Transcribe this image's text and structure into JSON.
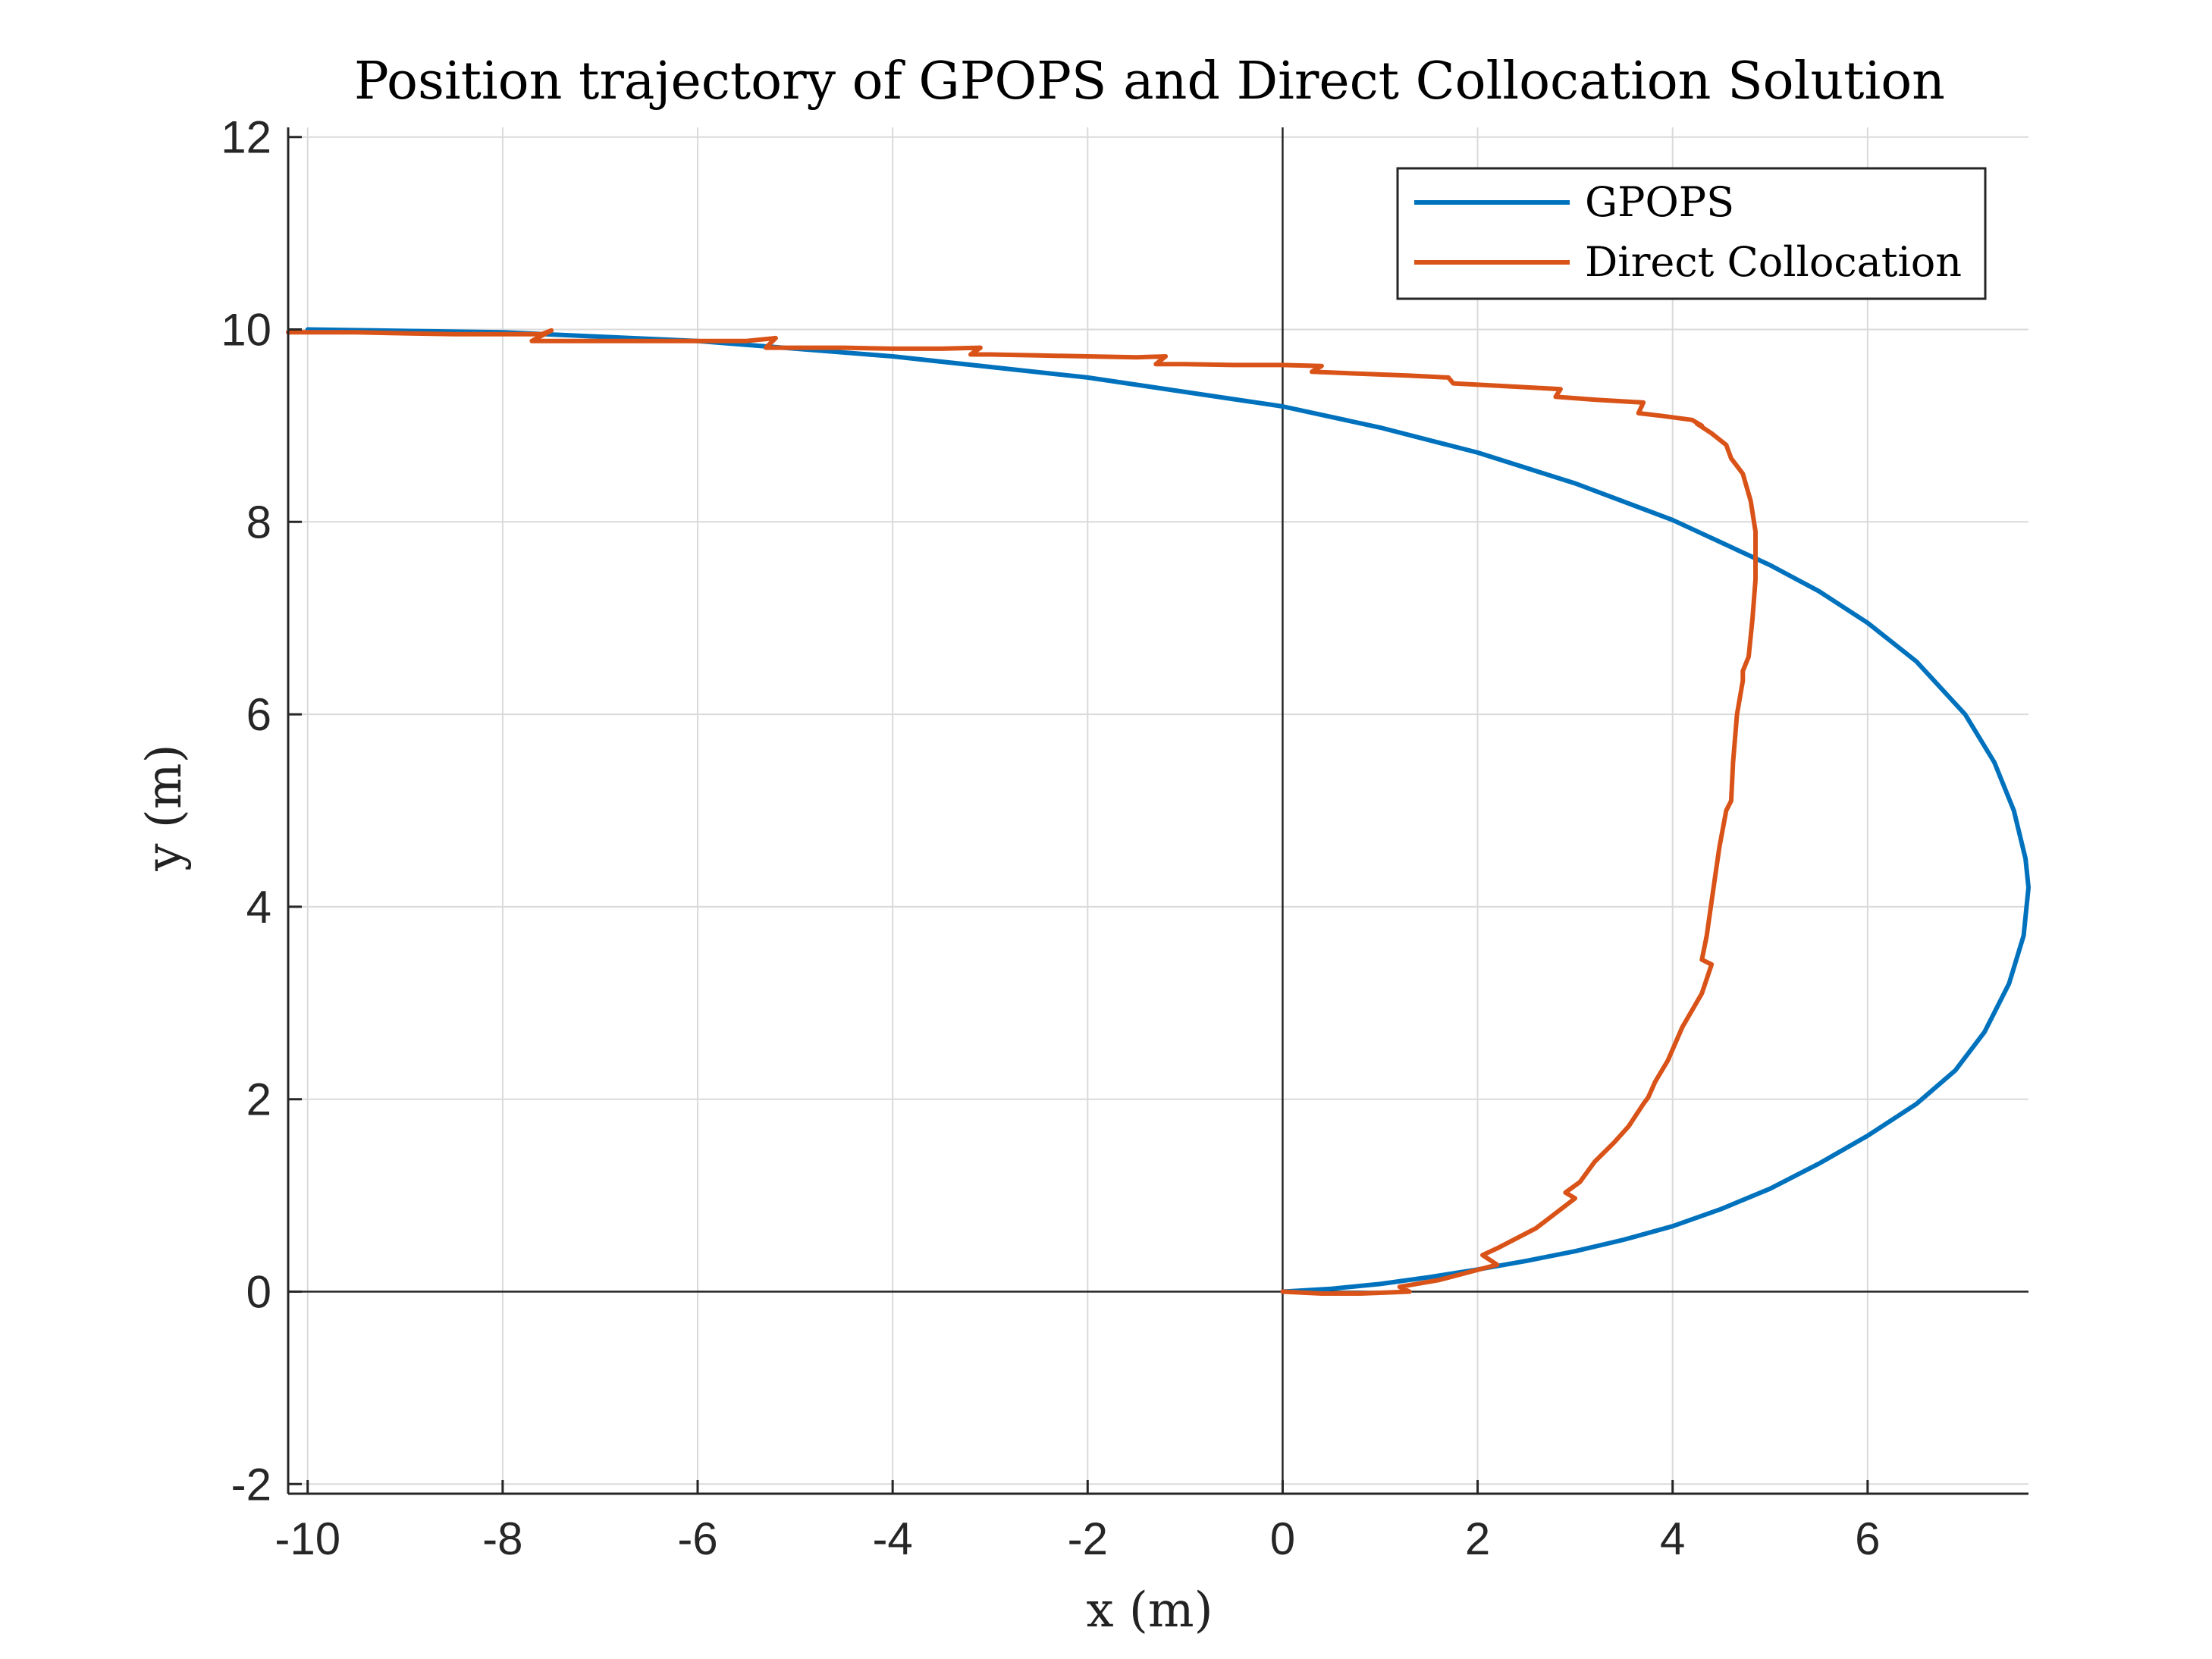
{
  "chart_data": {
    "type": "line",
    "title": "Position trajectory of GPOPS and Direct Collocation Solution",
    "xlabel": "x (m)",
    "ylabel": "y (m)",
    "xlim": [
      -10.2,
      7.65
    ],
    "ylim": [
      -2.1,
      12.1
    ],
    "xticks": [
      -10,
      -8,
      -6,
      -4,
      -2,
      0,
      2,
      4,
      6
    ],
    "yticks": [
      -2,
      0,
      2,
      4,
      6,
      8,
      10,
      12
    ],
    "grid": true,
    "zero_lines": true,
    "legend": {
      "position": "top-right"
    },
    "series": [
      {
        "name": "GPOPS",
        "color": "#0072BD",
        "x": [
          -10,
          -8,
          -6,
          -4,
          -2,
          0,
          1,
          2,
          3,
          4,
          5,
          5.5,
          6,
          6.5,
          7,
          7.3,
          7.5,
          7.62,
          7.65,
          7.6,
          7.45,
          7.2,
          6.9,
          6.5,
          6,
          5.5,
          5,
          4.5,
          4,
          3.5,
          3,
          2.5,
          2,
          1.5,
          1,
          0.5,
          0
        ],
        "y": [
          10,
          9.97,
          9.88,
          9.72,
          9.5,
          9.2,
          8.98,
          8.72,
          8.4,
          8.02,
          7.55,
          7.28,
          6.95,
          6.55,
          6.0,
          5.5,
          5.0,
          4.5,
          4.2,
          3.7,
          3.2,
          2.7,
          2.3,
          1.95,
          1.62,
          1.33,
          1.07,
          0.86,
          0.68,
          0.54,
          0.42,
          0.32,
          0.23,
          0.15,
          0.08,
          0.03,
          0
        ]
      },
      {
        "name": "Direct Collocation",
        "color": "#D95319",
        "x": [
          -10.2,
          -9.5,
          -9,
          -8.5,
          -8,
          -7.6,
          -7.5,
          -7.7,
          -7,
          -6.5,
          -6,
          -5.5,
          -5.2,
          -5.3,
          -5,
          -4.5,
          -4,
          -3.5,
          -3.1,
          -3.2,
          -3,
          -2.5,
          -2,
          -1.5,
          -1.2,
          -1.3,
          -1,
          -0.5,
          0,
          0.4,
          0.3,
          0.8,
          1.3,
          1.7,
          1.75,
          2.3,
          2.85,
          2.8,
          3.2,
          3.7,
          3.65,
          3.9,
          4.2,
          4.3,
          4.25,
          4.4,
          4.55,
          4.6,
          4.72,
          4.8,
          4.85,
          4.85,
          4.82,
          4.78,
          4.72,
          4.72,
          4.66,
          4.62,
          4.6,
          4.55,
          4.48,
          4.42,
          4.35,
          4.3,
          4.4,
          4.3,
          4.1,
          3.95,
          3.82,
          3.75,
          3.7,
          3.55,
          3.4,
          3.2,
          3.05,
          2.9,
          3.0,
          2.6,
          2.2,
          2.05,
          2.2,
          1.6,
          1.2,
          1.3,
          0.8,
          0.4,
          0
        ],
        "y": [
          9.97,
          9.97,
          9.96,
          9.95,
          9.95,
          9.95,
          9.99,
          9.88,
          9.88,
          9.88,
          9.88,
          9.88,
          9.91,
          9.81,
          9.81,
          9.81,
          9.8,
          9.8,
          9.81,
          9.74,
          9.74,
          9.73,
          9.72,
          9.71,
          9.72,
          9.64,
          9.64,
          9.63,
          9.63,
          9.62,
          9.56,
          9.54,
          9.52,
          9.5,
          9.44,
          9.41,
          9.38,
          9.3,
          9.27,
          9.24,
          9.13,
          9.1,
          9.06,
          9.0,
          9.02,
          8.92,
          8.8,
          8.66,
          8.5,
          8.22,
          7.9,
          7.4,
          7.0,
          6.6,
          6.45,
          6.35,
          6.0,
          5.5,
          5.1,
          5.0,
          4.62,
          4.2,
          3.7,
          3.45,
          3.4,
          3.1,
          2.75,
          2.4,
          2.18,
          2.02,
          1.95,
          1.72,
          1.55,
          1.35,
          1.14,
          1.03,
          0.97,
          0.66,
          0.45,
          0.38,
          0.28,
          0.12,
          0.05,
          0.0,
          -0.02,
          -0.02,
          0
        ]
      }
    ]
  }
}
